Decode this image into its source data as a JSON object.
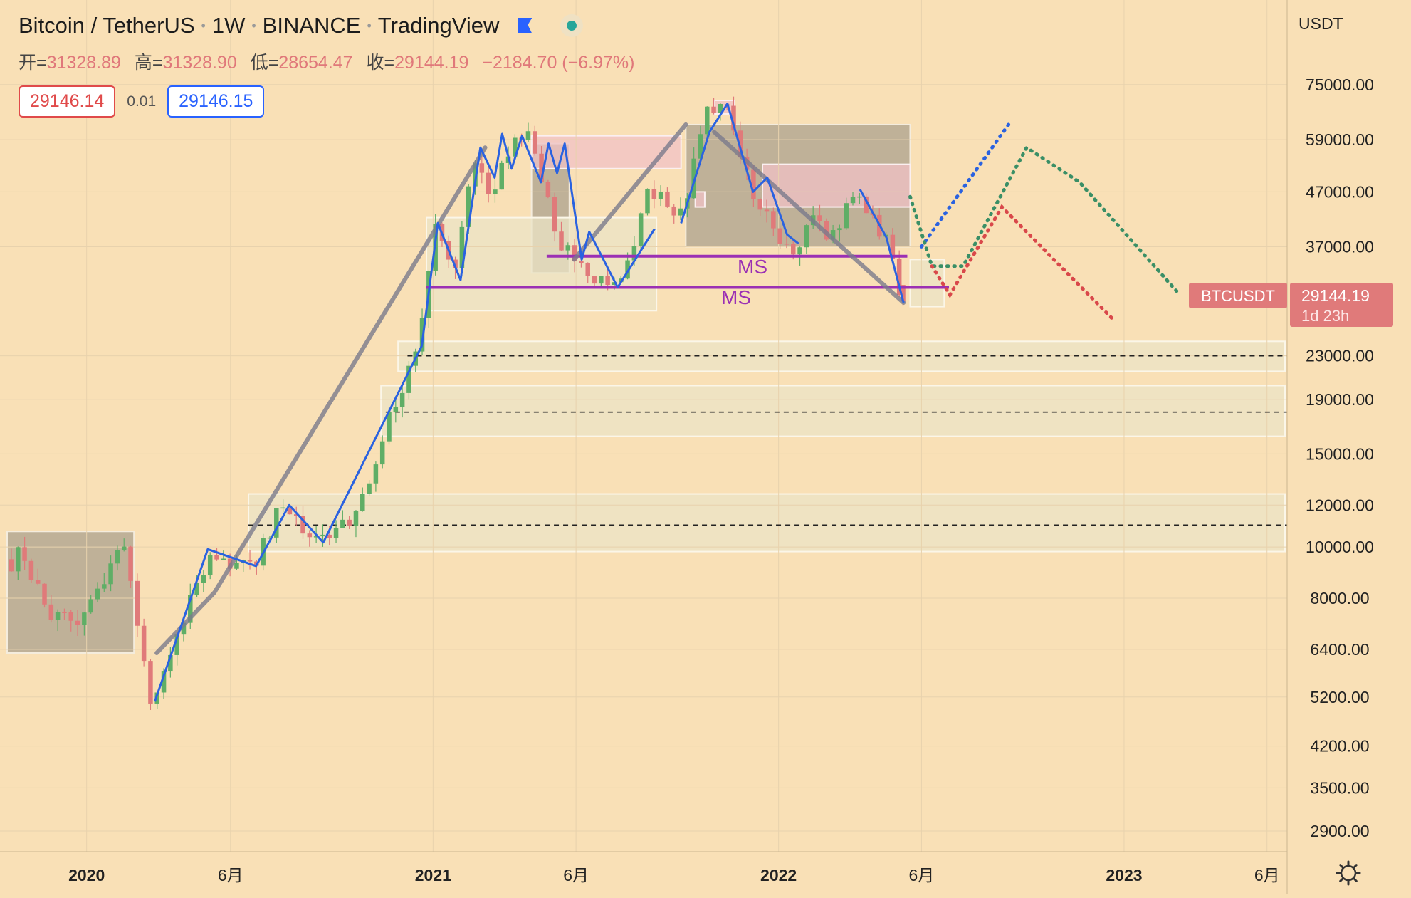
{
  "header": {
    "symbol": "Bitcoin / TetherUS",
    "interval": "1W",
    "exchange": "BINANCE",
    "platform": "TradingView",
    "ohlc": {
      "open_label": "开=",
      "open": "31328.89",
      "high_label": "高=",
      "high": "31328.90",
      "low_label": "低=",
      "low": "28654.47",
      "close_label": "收=",
      "close": "29144.19",
      "change": "−2184.70 (−6.97%)"
    },
    "sell_price": "29146.14",
    "spread": "0.01",
    "buy_price": "29146.15"
  },
  "axis": {
    "currency": "USDT",
    "symbol_tag": "BTCUSDT",
    "last_price": "29144.19",
    "countdown": "1d 23h",
    "settings_icon": "gear-icon"
  },
  "colors": {
    "background": "#f9e0b6",
    "up": "#5fae66",
    "down": "#e07a7a",
    "trend_blue": "#2a62e0",
    "trend_gray": "#7a7a8c",
    "ms_line": "#9b30b4",
    "proj_blue": "#2a62e0",
    "proj_green": "#3a8f66",
    "proj_red": "#d9484a",
    "price_tag": "#e07a7a"
  },
  "annotations": {
    "ms_upper": "MS",
    "ms_lower": "MS"
  },
  "chart_data": {
    "type": "candlestick",
    "timeframe": "1W",
    "y_scale": "log",
    "ylim": [
      2700,
      90000
    ],
    "y_ticks": [
      75000,
      59000,
      47000,
      37000,
      23000,
      19000,
      15000,
      12000,
      10000,
      8000,
      6400,
      5200,
      4200,
      3500,
      2900
    ],
    "y_tick_labels": [
      "75000.00",
      "59000.00",
      "47000.00",
      "37000.00",
      "23000.00",
      "19000.00",
      "15000.00",
      "12000.00",
      "10000.00",
      "8000.00",
      "6400.00",
      "5200.00",
      "4200.00",
      "3500.00",
      "2900.00"
    ],
    "x_ticks": [
      {
        "date": "2020-01-01",
        "label": "2020",
        "bold": true
      },
      {
        "date": "2020-06-01",
        "label": "6月",
        "bold": false
      },
      {
        "date": "2021-01-01",
        "label": "2021",
        "bold": true
      },
      {
        "date": "2021-06-01",
        "label": "6月",
        "bold": false
      },
      {
        "date": "2022-01-01",
        "label": "2022",
        "bold": true
      },
      {
        "date": "2022-06-01",
        "label": "6月",
        "bold": false
      },
      {
        "date": "2023-01-01",
        "label": "2023",
        "bold": true
      },
      {
        "date": "2023-06-01",
        "label": "6月",
        "bold": false
      }
    ],
    "xlim": [
      "2019-10-09",
      "2023-06-20"
    ],
    "anchors": [
      [
        "2019-10-10",
        8300
      ],
      [
        "2019-10-24",
        10400
      ],
      [
        "2019-11-01",
        9200
      ],
      [
        "2019-12-01",
        7300
      ],
      [
        "2020-01-01",
        7200
      ],
      [
        "2020-02-12",
        10400
      ],
      [
        "2020-03-13",
        5100
      ],
      [
        "2020-04-01",
        6400
      ],
      [
        "2020-05-15",
        9700
      ],
      [
        "2020-06-30",
        9150
      ],
      [
        "2020-07-25",
        11800
      ],
      [
        "2020-09-05",
        10300
      ],
      [
        "2020-10-15",
        11500
      ],
      [
        "2020-11-25",
        18800
      ],
      [
        "2020-12-20",
        24000
      ],
      [
        "2021-01-08",
        41000
      ],
      [
        "2021-01-25",
        32000
      ],
      [
        "2021-02-20",
        57000
      ],
      [
        "2021-03-05",
        47000
      ],
      [
        "2021-04-12",
        63000
      ],
      [
        "2021-05-19",
        37000
      ],
      [
        "2021-06-20",
        33000
      ],
      [
        "2021-07-20",
        30500
      ],
      [
        "2021-08-20",
        48000
      ],
      [
        "2021-09-10",
        45000
      ],
      [
        "2021-09-25",
        42500
      ],
      [
        "2021-10-20",
        66000
      ],
      [
        "2021-11-10",
        67000
      ],
      [
        "2021-12-05",
        48000
      ],
      [
        "2022-01-22",
        35000
      ],
      [
        "2022-02-10",
        44000
      ],
      [
        "2022-02-24",
        37500
      ],
      [
        "2022-03-28",
        47000
      ],
      [
        "2022-04-25",
        38500
      ],
      [
        "2022-05-07",
        35000
      ],
      [
        "2022-05-10",
        31328
      ],
      [
        "2022-05-13",
        29144
      ]
    ],
    "last_candle": {
      "date": "2022-05-09",
      "open": 31328.89,
      "high": 31328.9,
      "low": 28654.47,
      "close": 29144.19
    },
    "zones": [
      {
        "kind": "gray",
        "x1": "2019-10-09",
        "x2": "2020-02-20",
        "y1": 6300,
        "y2": 10700
      },
      {
        "kind": "gray",
        "x1": "2021-04-15",
        "x2": "2021-05-25",
        "y1": 33000,
        "y2": 58000
      },
      {
        "kind": "gray",
        "x1": "2021-09-25",
        "x2": "2022-05-20",
        "y1": 37000,
        "y2": 63000
      },
      {
        "kind": "pink",
        "x1": "2021-04-15",
        "x2": "2021-09-20",
        "y1": 52000,
        "y2": 60000
      },
      {
        "kind": "pink",
        "x1": "2021-10-25",
        "x2": "2021-11-15",
        "y1": 66000,
        "y2": 70000
      },
      {
        "kind": "pink",
        "x1": "2021-12-15",
        "x2": "2022-05-20",
        "y1": 44000,
        "y2": 53000
      },
      {
        "kind": "pink",
        "x1": "2021-10-05",
        "x2": "2021-10-15",
        "y1": 44000,
        "y2": 47000
      },
      {
        "kind": "light",
        "x1": "2020-12-25",
        "x2": "2021-08-25",
        "y1": 28000,
        "y2": 42000
      },
      {
        "kind": "light",
        "x1": "2022-05-20",
        "x2": "2022-06-25",
        "y1": 28500,
        "y2": 35000
      },
      {
        "kind": "light",
        "x1": "2020-11-25",
        "x2": "2023-06-20",
        "y1": 21500,
        "y2": 24500
      },
      {
        "kind": "light",
        "x1": "2020-11-07",
        "x2": "2023-06-20",
        "y1": 16200,
        "y2": 20200
      },
      {
        "kind": "light",
        "x1": "2020-06-20",
        "x2": "2023-06-20",
        "y1": 9800,
        "y2": 12600
      }
    ],
    "dashed_levels": [
      {
        "x1": "2020-12-05",
        "y": 23000
      },
      {
        "x1": "2020-11-12",
        "y": 18000
      },
      {
        "x1": "2020-06-20",
        "y": 11000
      }
    ],
    "ms_lines": [
      {
        "x1": "2021-05-01",
        "x2": "2022-05-17",
        "y": 35500
      },
      {
        "x1": "2020-12-25",
        "x2": "2022-06-30",
        "y": 31000
      }
    ],
    "gray_trendlines": [
      [
        [
          "2020-03-15",
          6300
        ],
        [
          "2020-05-15",
          8200
        ],
        [
          "2021-02-25",
          57000
        ]
      ],
      [
        [
          "2021-05-30",
          35000
        ],
        [
          "2021-09-25",
          63000
        ]
      ],
      [
        [
          "2021-10-25",
          61000
        ],
        [
          "2022-05-13",
          29000
        ]
      ]
    ],
    "blue_trendlines": [
      [
        [
          "2020-03-13",
          5100
        ],
        [
          "2020-05-08",
          9900
        ],
        [
          "2020-06-28",
          9200
        ],
        [
          "2020-08-02",
          12000
        ],
        [
          "2020-09-07",
          10200
        ],
        [
          "2020-12-20",
          24000
        ],
        [
          "2021-01-06",
          41000
        ],
        [
          "2021-01-30",
          32000
        ],
        [
          "2021-02-20",
          57000
        ],
        [
          "2021-03-07",
          50000
        ],
        [
          "2021-03-15",
          60500
        ],
        [
          "2021-03-25",
          52000
        ],
        [
          "2021-04-05",
          60000
        ],
        [
          "2021-04-25",
          49000
        ],
        [
          "2021-05-03",
          58000
        ],
        [
          "2021-05-12",
          51000
        ],
        [
          "2021-05-20",
          58000
        ],
        [
          "2021-06-07",
          35000
        ],
        [
          "2021-06-15",
          39500
        ],
        [
          "2021-07-15",
          31000
        ],
        [
          "2021-08-23",
          40000
        ]
      ],
      [
        [
          "2021-09-20",
          41000
        ],
        [
          "2021-10-20",
          61000
        ],
        [
          "2021-11-08",
          69000
        ],
        [
          "2021-12-05",
          47000
        ],
        [
          "2021-12-20",
          50000
        ],
        [
          "2022-01-10",
          39000
        ],
        [
          "2022-01-22",
          37500
        ]
      ],
      [
        [
          "2022-03-28",
          47500
        ],
        [
          "2022-04-25",
          38500
        ],
        [
          "2022-05-13",
          29000
        ]
      ]
    ],
    "projections": [
      {
        "color": "blue",
        "points": [
          [
            "2022-06-01",
            37000
          ],
          [
            "2022-09-01",
            63000
          ]
        ]
      },
      {
        "color": "green",
        "points": [
          [
            "2022-05-20",
            46000
          ],
          [
            "2022-06-12",
            34000
          ],
          [
            "2022-07-15",
            34000
          ],
          [
            "2022-09-20",
            57000
          ],
          [
            "2022-11-15",
            49000
          ],
          [
            "2023-03-01",
            30000
          ]
        ]
      },
      {
        "color": "red",
        "points": [
          [
            "2022-06-12",
            34000
          ],
          [
            "2022-07-01",
            30000
          ],
          [
            "2022-08-25",
            44000
          ],
          [
            "2022-12-20",
            27000
          ]
        ]
      }
    ]
  }
}
